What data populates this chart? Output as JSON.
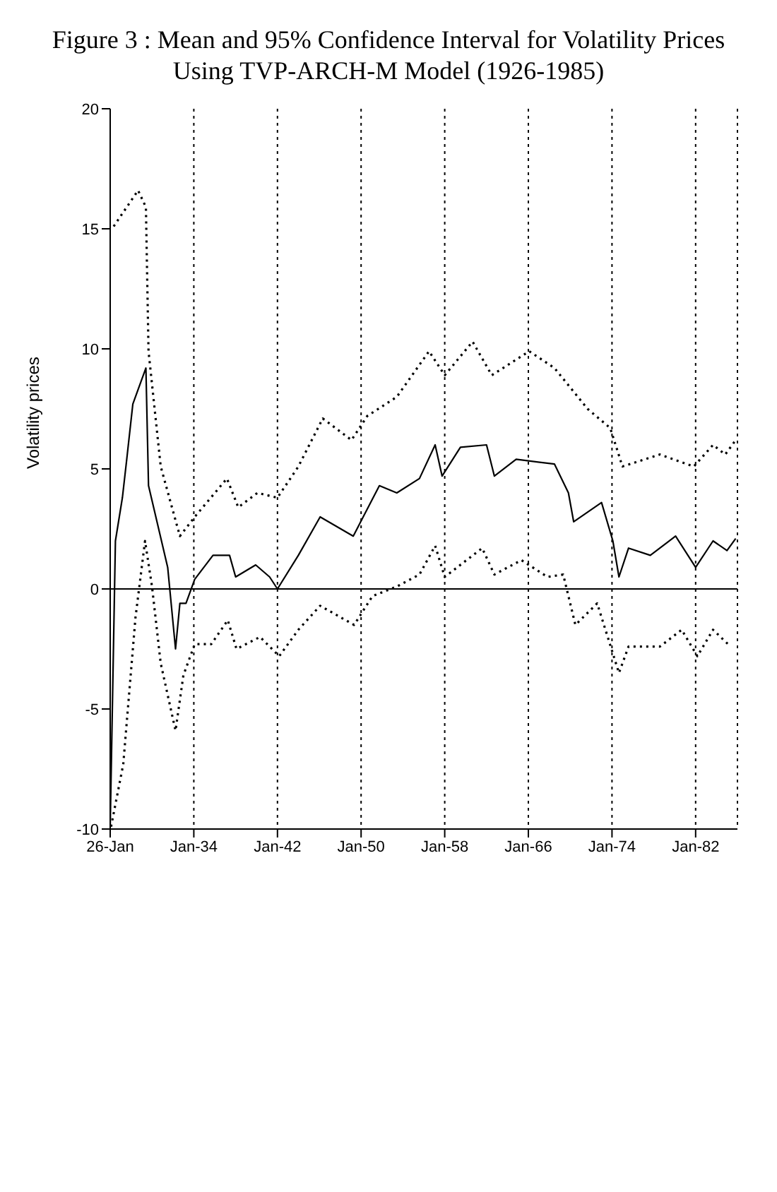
{
  "chart_data": {
    "type": "line",
    "title": "Figure 3 : Mean and 95% Confidence Interval for Volatility Prices Using TVP-ARCH-M Model (1926-1985)",
    "ylabel": "Volatility prices",
    "xlim": [
      "1926-01",
      "1986-01"
    ],
    "xticks": [
      {
        "value": "1926-01",
        "label": "26-Jan"
      },
      {
        "value": "1934-01",
        "label": "Jan-34"
      },
      {
        "value": "1942-01",
        "label": "Jan-42"
      },
      {
        "value": "1950-01",
        "label": "Jan-50"
      },
      {
        "value": "1958-01",
        "label": "Jan-58"
      },
      {
        "value": "1966-01",
        "label": "Jan-66"
      },
      {
        "value": "1974-01",
        "label": "Jan-74"
      },
      {
        "value": "1982-01",
        "label": "Jan-82"
      }
    ],
    "ylim": [
      -10,
      20
    ],
    "yticks": [
      -10,
      -5,
      0,
      5,
      10,
      15,
      20
    ],
    "grid": "x",
    "marker": "none",
    "ref_lines": [
      {
        "axis": "y",
        "value": 0,
        "color": "#000000",
        "line_style": "solid"
      }
    ],
    "series": [
      {
        "color": "#000000",
        "line_style": "solid",
        "x": [
          "1926-01",
          "1926-07",
          "1927-03",
          "1927-08",
          "1928-03",
          "1929-06",
          "1929-09",
          "1931-07",
          "1932-04",
          "1932-09",
          "1933-04",
          "1934-02",
          "1935-11",
          "1937-06",
          "1938-01",
          "1939-12",
          "1941-04",
          "1942-01",
          "1944-01",
          "1946-02",
          "1949-04",
          "1951-10",
          "1953-06",
          "1955-08",
          "1957-02",
          "1957-10",
          "1959-07",
          "1962-01",
          "1962-10",
          "1964-11",
          "1968-07",
          "1969-11",
          "1970-05",
          "1973-01",
          "1974-02",
          "1974-09",
          "1975-08",
          "1977-09",
          "1980-02",
          "1982-01",
          "1983-09",
          "1985-01",
          "1985-11"
        ],
        "values": [
          -9.9,
          2.0,
          3.8,
          5.4,
          7.7,
          9.2,
          4.3,
          0.9,
          -2.5,
          -0.6,
          -0.6,
          0.4,
          1.4,
          1.4,
          0.5,
          1.0,
          0.5,
          0.0,
          1.4,
          3.0,
          2.2,
          4.3,
          4.0,
          4.6,
          6.0,
          4.7,
          5.9,
          6.0,
          4.7,
          5.4,
          5.2,
          4.0,
          2.8,
          3.6,
          2.0,
          0.5,
          1.7,
          1.4,
          2.2,
          0.9,
          2.0,
          1.6,
          2.1
        ]
      },
      {
        "color": "#000000",
        "line_style": "dotted",
        "x": [
          "1926-05",
          "1928-09",
          "1929-06",
          "1929-09",
          "1930-11",
          "1932-09",
          "1934-02",
          "1937-03",
          "1938-04",
          "1940-02",
          "1942-01",
          "1944-01",
          "1946-05",
          "1949-02",
          "1950-08",
          "1953-06",
          "1956-07",
          "1958-01",
          "1960-09",
          "1962-07",
          "1966-02",
          "1968-07",
          "1971-09",
          "1973-11",
          "1975-01",
          "1978-08",
          "1981-11",
          "1983-09",
          "1984-11",
          "1985-11"
        ],
        "values": [
          15.1,
          16.6,
          15.9,
          9.9,
          5.1,
          2.2,
          3.0,
          4.6,
          3.4,
          4.0,
          3.8,
          5.1,
          7.1,
          6.2,
          7.2,
          8.0,
          9.9,
          8.9,
          10.3,
          8.9,
          9.9,
          9.2,
          7.5,
          6.7,
          5.1,
          5.6,
          5.1,
          6.0,
          5.6,
          6.2
        ]
      },
      {
        "color": "#000000",
        "line_style": "dotted",
        "x": [
          "1926-02",
          "1927-04",
          "1928-06",
          "1929-05",
          "1930-01",
          "1930-11",
          "1932-04",
          "1933-01",
          "1934-02",
          "1935-09",
          "1937-04",
          "1938-02",
          "1940-05",
          "1942-03",
          "1944-01",
          "1946-02",
          "1949-05",
          "1951-02",
          "1953-06",
          "1955-08",
          "1957-02",
          "1958-01",
          "1961-08",
          "1962-10",
          "1965-05",
          "1967-11",
          "1969-05",
          "1970-07",
          "1972-08",
          "1974-09",
          "1975-08",
          "1978-08",
          "1980-09",
          "1982-03",
          "1983-09",
          "1985-05"
        ],
        "values": [
          -9.9,
          -7.3,
          -1.2,
          2.0,
          0.1,
          -3.1,
          -5.9,
          -3.6,
          -2.3,
          -2.3,
          -1.3,
          -2.5,
          -2.0,
          -2.8,
          -1.7,
          -0.7,
          -1.5,
          -0.3,
          0.1,
          0.6,
          1.8,
          0.5,
          1.7,
          0.6,
          1.2,
          0.5,
          0.6,
          -1.5,
          -0.6,
          -3.5,
          -2.4,
          -2.4,
          -1.7,
          -2.8,
          -1.7,
          -2.4
        ]
      }
    ]
  }
}
